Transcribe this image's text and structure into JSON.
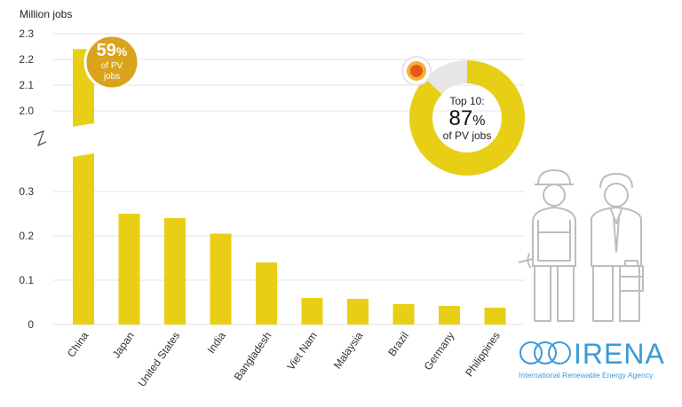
{
  "chart_data": {
    "type": "bar",
    "ylabel": "Million jobs",
    "categories": [
      "China",
      "Japan",
      "United States",
      "India",
      "Bangladesh",
      "Viet Nam",
      "Malaysia",
      "Brazil",
      "Germany",
      "Philippines"
    ],
    "values": [
      2.24,
      0.25,
      0.24,
      0.205,
      0.14,
      0.06,
      0.058,
      0.046,
      0.042,
      0.038
    ],
    "axis_lower": {
      "range": [
        0,
        0.3
      ],
      "ticks": [
        "0",
        "0.1",
        "0.2",
        "0.3"
      ]
    },
    "axis_upper": {
      "range": [
        2.0,
        2.3
      ],
      "ticks": [
        "2.0",
        "2.1",
        "2.2",
        "2.3"
      ]
    },
    "axis_break": true,
    "grid": "horizontal",
    "bar_color": "#e8cf16",
    "china_badge": {
      "value": "59",
      "unit": "%",
      "line1": "of PV",
      "line2": "jobs",
      "color": "#d9a31c"
    },
    "donut": {
      "share": 0.87,
      "line1": "Top 10:",
      "value": "87",
      "unit": "%",
      "line2": "of PV jobs",
      "color": "#e8cf16",
      "rest_color": "#e6e6e6"
    }
  },
  "brand": {
    "name": "IRENA",
    "tagline": "International Renewable Energy Agency",
    "color": "#3a9ad9"
  },
  "illustration": {
    "people": "worker-icon"
  }
}
